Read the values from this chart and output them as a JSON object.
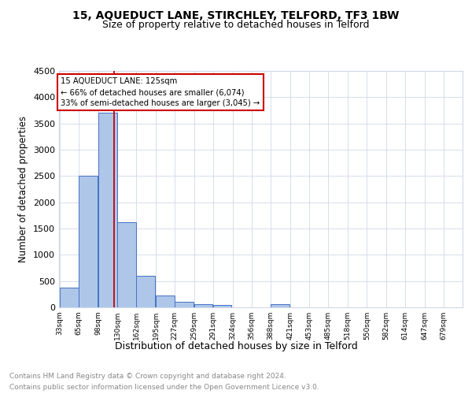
{
  "title1": "15, AQUEDUCT LANE, STIRCHLEY, TELFORD, TF3 1BW",
  "title2": "Size of property relative to detached houses in Telford",
  "xlabel": "Distribution of detached houses by size in Telford",
  "ylabel": "Number of detached properties",
  "bin_labels": [
    "33sqm",
    "65sqm",
    "98sqm",
    "130sqm",
    "162sqm",
    "195sqm",
    "227sqm",
    "259sqm",
    "291sqm",
    "324sqm",
    "356sqm",
    "388sqm",
    "421sqm",
    "453sqm",
    "485sqm",
    "518sqm",
    "550sqm",
    "582sqm",
    "614sqm",
    "647sqm",
    "679sqm"
  ],
  "bin_edges": [
    33,
    65,
    98,
    130,
    162,
    195,
    227,
    259,
    291,
    324,
    356,
    388,
    421,
    453,
    485,
    518,
    550,
    582,
    614,
    647,
    679
  ],
  "bar_heights": [
    375,
    2500,
    3700,
    1625,
    600,
    225,
    110,
    65,
    40,
    0,
    0,
    65,
    0,
    0,
    0,
    0,
    0,
    0,
    0,
    0
  ],
  "bar_color": "#aec6e8",
  "bar_edge_color": "#4472c4",
  "vline_x": 125,
  "vline_color": "#cc0000",
  "ylim": [
    0,
    4500
  ],
  "yticks": [
    0,
    500,
    1000,
    1500,
    2000,
    2500,
    3000,
    3500,
    4000,
    4500
  ],
  "annotation_text": "15 AQUEDUCT LANE: 125sqm\n← 66% of detached houses are smaller (6,074)\n33% of semi-detached houses are larger (3,045) →",
  "annotation_box_color": "#cc0000",
  "footnote1": "Contains HM Land Registry data © Crown copyright and database right 2024.",
  "footnote2": "Contains public sector information licensed under the Open Government Licence v3.0.",
  "bg_color": "#ffffff",
  "grid_color": "#d0d8e8",
  "title1_fontsize": 10,
  "title2_fontsize": 9,
  "xlabel_fontsize": 9,
  "ylabel_fontsize": 8.5,
  "footnote_fontsize": 6.5
}
